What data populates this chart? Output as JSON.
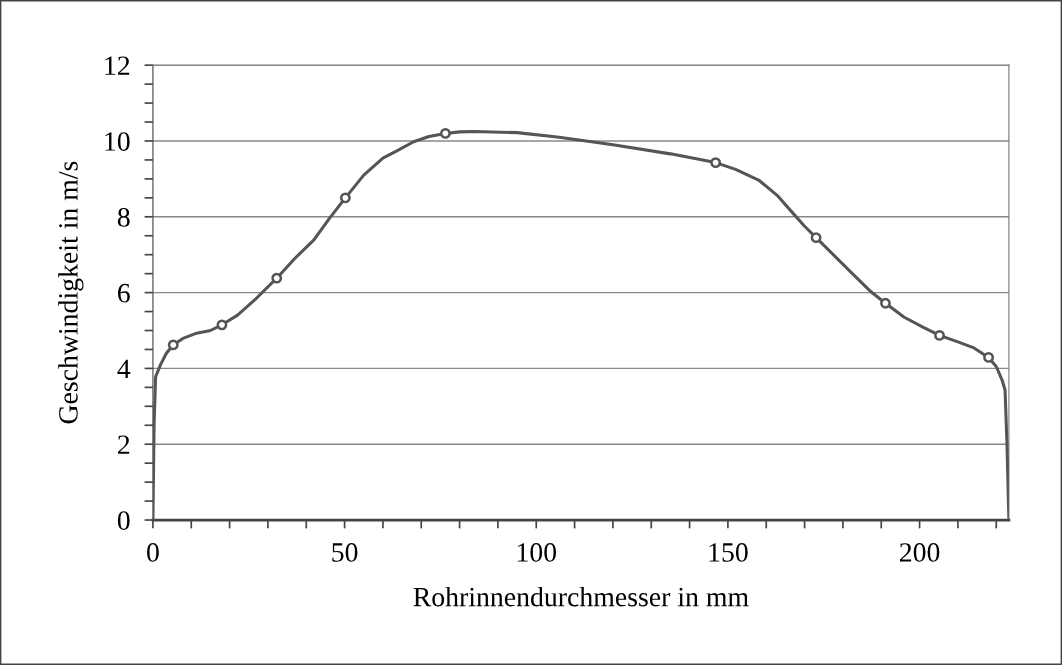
{
  "chart_data": {
    "type": "line",
    "xlabel": "Rohrinnendurchmesser in mm",
    "ylabel": "Geschwindigkeit in m/s",
    "xlim": [
      0,
      223.3
    ],
    "ylim": [
      0,
      12
    ],
    "xticks": [
      0,
      {
        "value": 10,
        "label": null
      },
      {
        "value": 20,
        "label": null
      },
      {
        "value": 30,
        "label": null
      },
      {
        "value": 40,
        "label": null
      },
      50,
      {
        "value": 60,
        "label": null
      },
      {
        "value": 70,
        "label": null
      },
      {
        "value": 80,
        "label": null
      },
      {
        "value": 90,
        "label": null
      },
      100,
      {
        "value": 110,
        "label": null
      },
      {
        "value": 120,
        "label": null
      },
      {
        "value": 130,
        "label": null
      },
      {
        "value": 140,
        "label": null
      },
      150,
      {
        "value": 160,
        "label": null
      },
      {
        "value": 170,
        "label": null
      },
      {
        "value": 180,
        "label": null
      },
      {
        "value": 190,
        "label": null
      },
      200,
      {
        "value": 210,
        "label": null
      },
      {
        "value": 220,
        "label": null
      }
    ],
    "yticks": [
      0,
      {
        "value": 0.5,
        "label": null
      },
      {
        "value": 1,
        "label": null
      },
      {
        "value": 1.5,
        "label": null
      },
      2,
      {
        "value": 2.5,
        "label": null
      },
      {
        "value": 3,
        "label": null
      },
      {
        "value": 3.5,
        "label": null
      },
      4,
      {
        "value": 4.5,
        "label": null
      },
      {
        "value": 5,
        "label": null
      },
      {
        "value": 5.5,
        "label": null
      },
      6,
      {
        "value": 6.5,
        "label": null
      },
      {
        "value": 7,
        "label": null
      },
      {
        "value": 7.5,
        "label": null
      },
      8,
      {
        "value": 8.5,
        "label": null
      },
      {
        "value": 9,
        "label": null
      },
      {
        "value": 9.5,
        "label": null
      },
      10,
      {
        "value": 10.5,
        "label": null
      },
      {
        "value": 11,
        "label": null
      },
      {
        "value": 11.5,
        "label": null
      },
      12
    ],
    "grid": "y",
    "legend": false,
    "line_style": "solid",
    "series": [
      {
        "marker": "none",
        "color": "#555555",
        "x": [
          0,
          0.3,
          0.7,
          2,
          3.5,
          5.3,
          8,
          11.4,
          15,
          18,
          22,
          27,
          32.3,
          37,
          42,
          46,
          50.2,
          55,
          60,
          64,
          68,
          72,
          76.3,
          80,
          84,
          95,
          106,
          120,
          135,
          146.8,
          152,
          158,
          163,
          167,
          170,
          173,
          178,
          183,
          187,
          191.1,
          196,
          201,
          205.2,
          210,
          214,
          218,
          220,
          221.5,
          222.3,
          222.8,
          223.3
        ],
        "values": [
          0,
          2.5,
          3.78,
          4.1,
          4.4,
          4.62,
          4.8,
          4.93,
          5.0,
          5.15,
          5.4,
          5.85,
          6.38,
          6.9,
          7.39,
          7.95,
          8.5,
          9.1,
          9.55,
          9.76,
          9.98,
          10.12,
          10.2,
          10.24,
          10.25,
          10.22,
          10.1,
          9.9,
          9.66,
          9.43,
          9.25,
          8.97,
          8.55,
          8.09,
          7.75,
          7.45,
          6.95,
          6.45,
          6.05,
          5.72,
          5.35,
          5.08,
          4.87,
          4.7,
          4.55,
          4.29,
          4.05,
          3.7,
          3.43,
          2.0,
          0
        ]
      },
      {
        "type": "scatter",
        "marker": "circle",
        "color": "#555555",
        "x": [
          5.3,
          18,
          32.3,
          50.2,
          76.3,
          146.8,
          173,
          191.1,
          205.2,
          218
        ],
        "values": [
          4.62,
          5.15,
          6.38,
          8.5,
          10.2,
          9.43,
          7.45,
          5.72,
          4.87,
          4.29
        ]
      }
    ]
  }
}
